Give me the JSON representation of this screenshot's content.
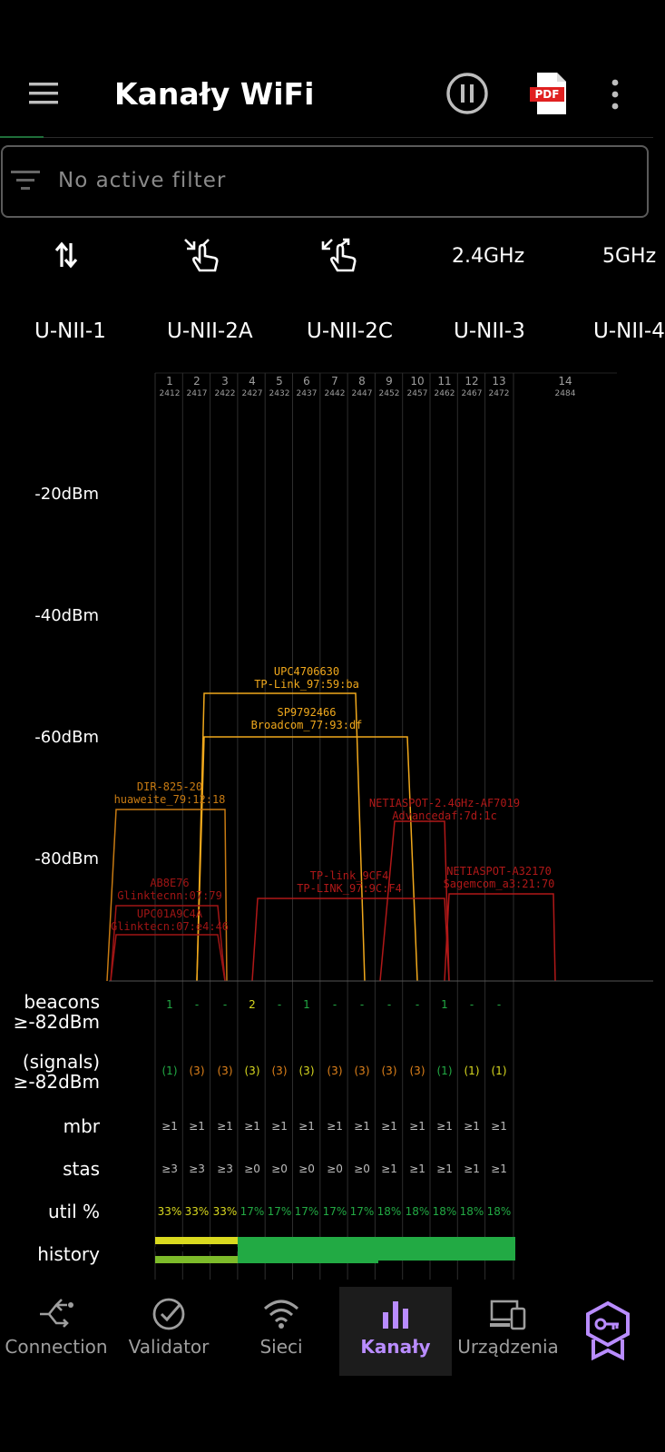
{
  "app": {
    "title": "Kanały WiFi",
    "filter_placeholder": "No active filter"
  },
  "toolbar_icons": [
    "menu-icon",
    "pause-icon",
    "pdf-icon",
    "more-vert-icon"
  ],
  "pdf_badge": "PDF",
  "controls": {
    "freq_24": "2.4GHz",
    "freq_5": "5GHz",
    "icons": [
      "swap-vertical-icon",
      "pinch-zoom-in-icon",
      "pinch-zoom-out-icon"
    ]
  },
  "bands": [
    "U-NII-1",
    "U-NII-2A",
    "U-NII-2C",
    "U-NII-3",
    "U-NII-4"
  ],
  "chart": {
    "channels": [
      {
        "num": "1",
        "freq": "2412"
      },
      {
        "num": "2",
        "freq": "2417"
      },
      {
        "num": "3",
        "freq": "2422"
      },
      {
        "num": "4",
        "freq": "2427"
      },
      {
        "num": "5",
        "freq": "2432"
      },
      {
        "num": "6",
        "freq": "2437"
      },
      {
        "num": "7",
        "freq": "2442"
      },
      {
        "num": "8",
        "freq": "2447"
      },
      {
        "num": "9",
        "freq": "2452"
      },
      {
        "num": "10",
        "freq": "2457"
      },
      {
        "num": "11",
        "freq": "2462"
      },
      {
        "num": "12",
        "freq": "2467"
      },
      {
        "num": "13",
        "freq": "2472"
      },
      {
        "num": "14",
        "freq": "2484"
      }
    ],
    "y_labels": [
      "-20dBm",
      "-40dBm",
      "-60dBm",
      "-80dBm"
    ],
    "networks": [
      {
        "ssid": "UPC4706630",
        "bssid": "TP-Link_97:59:ba",
        "color": "#f0a81c"
      },
      {
        "ssid": "SP9792466",
        "bssid": "Broadcom_77:93:df",
        "color": "#f0a81c"
      },
      {
        "ssid": "DIR-825-20",
        "bssid": "huaweite_79:12:18",
        "color": "#c77a12"
      },
      {
        "ssid": "NETIASPOT-2.4GHz-AF7019",
        "bssid": "Advancedaf:7d:1c",
        "color": "#b01818"
      },
      {
        "ssid": "TP-link_9CF4",
        "bssid": "TP-LINK_97:9C:F4",
        "color": "#b01818"
      },
      {
        "ssid": "NETIASPOT-A32170",
        "bssid": "Sagemcom_a3:21:70",
        "color": "#b01818"
      },
      {
        "ssid": "AB8E76",
        "bssid": "Glinktecnn:07:79",
        "color": "#a01515"
      },
      {
        "ssid": "UPC01A9C4A",
        "bssid": "Glinktecn:07:e4:46",
        "color": "#a01515"
      }
    ]
  },
  "stats": {
    "labels": {
      "beacons": [
        "beacons",
        "≥-82dBm"
      ],
      "signals": [
        "(signals)",
        "≥-82dBm"
      ],
      "mbr": "mbr",
      "stas": "stas",
      "util": "util %",
      "history": "history"
    },
    "beacons": [
      "1",
      "-",
      "-",
      "2",
      "-",
      "1",
      "-",
      "-",
      "-",
      "-",
      "1",
      "-",
      "-"
    ],
    "signals": [
      "(1)",
      "(3)",
      "(3)",
      "(3)",
      "(3)",
      "(3)",
      "(3)",
      "(3)",
      "(3)",
      "(3)",
      "(1)",
      "(1)",
      "(1)"
    ],
    "mbr": [
      "≥1",
      "≥1",
      "≥1",
      "≥1",
      "≥1",
      "≥1",
      "≥1",
      "≥1",
      "≥1",
      "≥1",
      "≥1",
      "≥1",
      "≥1"
    ],
    "stas": [
      "≥3",
      "≥3",
      "≥3",
      "≥0",
      "≥0",
      "≥0",
      "≥0",
      "≥0",
      "≥1",
      "≥1",
      "≥1",
      "≥1",
      "≥1"
    ],
    "util": [
      "33%",
      "33%",
      "33%",
      "17%",
      "17%",
      "17%",
      "17%",
      "17%",
      "18%",
      "18%",
      "18%",
      "18%",
      "18%"
    ]
  },
  "nav": [
    {
      "label": "Connection",
      "icon": "connection-icon"
    },
    {
      "label": "Validator",
      "icon": "check-circle-icon"
    },
    {
      "label": "Sieci",
      "icon": "wifi-icon"
    },
    {
      "label": "Kanały",
      "icon": "bar-chart-icon",
      "active": true
    },
    {
      "label": "Urządzenia",
      "icon": "devices-icon"
    },
    {
      "label": "",
      "icon": "premium-badge-icon"
    }
  ],
  "colors": {
    "accent": "#b98cff",
    "green": "#22aa44",
    "yellow": "#d9d91f",
    "orange": "#e0821a",
    "red": "#b01818"
  }
}
